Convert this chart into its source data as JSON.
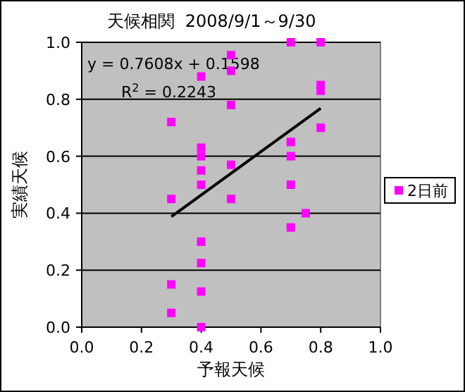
{
  "chart_data": {
    "type": "scatter",
    "title": "天候相関  2008/9/1～9/30",
    "xlabel": "予報天候",
    "ylabel": "実績天候",
    "xlim": [
      0,
      1
    ],
    "ylim": [
      0,
      1
    ],
    "xticks": [
      {
        "value": 0,
        "label": "0.0"
      },
      {
        "value": 0.2,
        "label": "0.2"
      },
      {
        "value": 0.4,
        "label": "0.4"
      },
      {
        "value": 0.6,
        "label": "0.6"
      },
      {
        "value": 0.8,
        "label": "0.8"
      },
      {
        "value": 1,
        "label": "1.0"
      }
    ],
    "yticks": [
      {
        "value": 0,
        "label": "0.0"
      },
      {
        "value": 0.2,
        "label": "0.2"
      },
      {
        "value": 0.4,
        "label": "0.4"
      },
      {
        "value": 0.6,
        "label": "0.6"
      },
      {
        "value": 0.8,
        "label": "0.8"
      },
      {
        "value": 1,
        "label": "1.0"
      }
    ],
    "grid": "y",
    "legend": "right",
    "annotations": [
      "y = 0.7608x + 0.1598",
      "R$^{2}$ = 0.2243"
    ],
    "series": [
      {
        "name": "2日前",
        "color": "#ff00ff",
        "marker": "square",
        "x": [
          0.3,
          0.3,
          0.3,
          0.3,
          0.4,
          0.4,
          0.4,
          0.4,
          0.4,
          0.4,
          0.4,
          0.4,
          0.4,
          0.5,
          0.5,
          0.5,
          0.5,
          0.5,
          0.7,
          0.7,
          0.7,
          0.7,
          0.7,
          0.75,
          0.8,
          0.8,
          0.8,
          0.8
        ],
        "values": [
          0.72,
          0.45,
          0.15,
          0.05,
          0.88,
          0.63,
          0.55,
          0.5,
          0.3,
          0.225,
          0.125,
          0.0,
          0.6,
          0.955,
          0.9,
          0.78,
          0.57,
          0.45,
          1.0,
          0.65,
          0.6,
          0.5,
          0.35,
          0.4,
          1.0,
          0.85,
          0.83,
          0.7
        ]
      },
      {
        "type": "line",
        "color": "#000000",
        "marker": "none",
        "x": [
          0.3,
          0.8
        ],
        "values": [
          0.388,
          0.768
        ]
      }
    ]
  }
}
